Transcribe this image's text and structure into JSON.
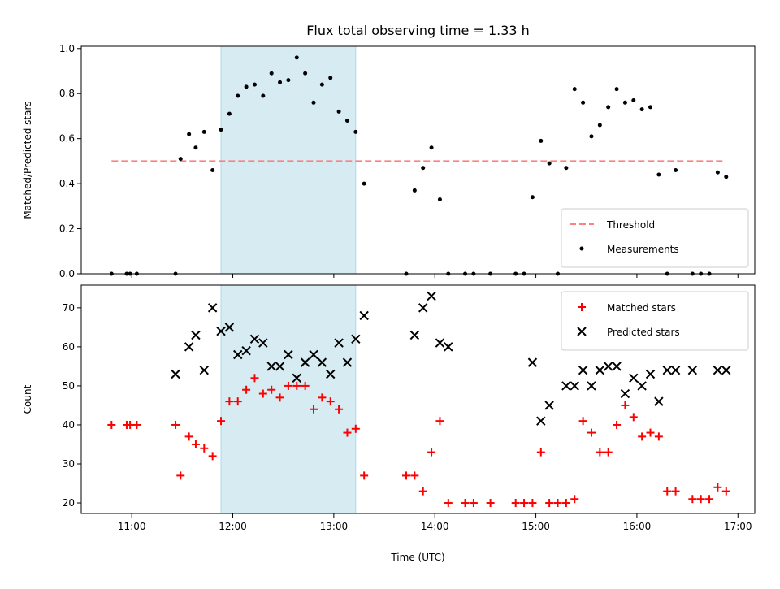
{
  "chart_data": [
    {
      "type": "scatter",
      "title": "Flux total observing time = 1.33 h",
      "xlabel": "",
      "ylabel": "Matched/Predicted stars",
      "xlim": [
        "10:30",
        "17:10"
      ],
      "ylim": [
        0,
        1.01
      ],
      "yticks": [
        "0.0",
        "0.2",
        "0.4",
        "0.6",
        "0.8",
        "1.0"
      ],
      "ytick_values": [
        0,
        0.2,
        0.4,
        0.6,
        0.8,
        1.0
      ],
      "xticks": [
        "11:00",
        "12:00",
        "13:00",
        "14:00",
        "15:00",
        "16:00",
        "17:00"
      ],
      "shaded_span": [
        "11:53",
        "13:13"
      ],
      "shaded_color": "#add8e6",
      "legend_position": "lower right",
      "threshold": {
        "name": "Threshold",
        "y": 0.5,
        "x": [
          "10:48",
          "16:53"
        ],
        "color": "#ff8080",
        "style": "dashed"
      },
      "series": [
        {
          "name": "Measurements",
          "marker": "dot",
          "color": "#000000",
          "x": [
            "10:48",
            "10:57",
            "10:59",
            "11:03",
            "11:26",
            "11:29",
            "11:34",
            "11:38",
            "11:43",
            "11:48",
            "11:53",
            "11:58",
            "12:03",
            "12:08",
            "12:13",
            "12:18",
            "12:23",
            "12:28",
            "12:33",
            "12:38",
            "12:43",
            "12:48",
            "12:53",
            "12:58",
            "13:03",
            "13:08",
            "13:13",
            "13:18",
            "13:43",
            "13:48",
            "13:53",
            "13:58",
            "14:03",
            "14:08",
            "14:18",
            "14:23",
            "14:33",
            "14:48",
            "14:53",
            "14:58",
            "15:03",
            "15:08",
            "15:13",
            "15:18",
            "15:23",
            "15:28",
            "15:33",
            "15:38",
            "15:43",
            "15:48",
            "15:53",
            "15:58",
            "16:03",
            "16:08",
            "16:13",
            "16:18",
            "16:23",
            "16:33",
            "16:38",
            "16:43",
            "16:48",
            "16:53"
          ],
          "values": [
            0,
            0,
            0,
            0,
            0,
            0.51,
            0.62,
            0.56,
            0.63,
            0.46,
            0.64,
            0.71,
            0.79,
            0.83,
            0.84,
            0.79,
            0.89,
            0.85,
            0.86,
            0.96,
            0.89,
            0.76,
            0.84,
            0.87,
            0.72,
            0.68,
            0.63,
            0.4,
            0,
            0.37,
            0.47,
            0.56,
            0.33,
            0,
            0,
            0,
            0,
            0,
            0,
            0.34,
            0.59,
            0.49,
            0,
            0.47,
            0.82,
            0.76,
            0.61,
            0.66,
            0.74,
            0.82,
            0.76,
            0.77,
            0.73,
            0.74,
            0.44,
            0,
            0.46,
            0,
            0,
            0,
            0.45,
            0.43
          ]
        }
      ]
    },
    {
      "type": "scatter",
      "title": "",
      "xlabel": "Time (UTC)",
      "ylabel": "Count",
      "xlim": [
        "10:30",
        "17:10"
      ],
      "ylim": [
        17.3,
        75.8
      ],
      "yticks": [
        "20",
        "30",
        "40",
        "50",
        "60",
        "70"
      ],
      "ytick_values": [
        20,
        30,
        40,
        50,
        60,
        70
      ],
      "xticks": [
        "11:00",
        "12:00",
        "13:00",
        "14:00",
        "15:00",
        "16:00",
        "17:00"
      ],
      "shaded_span": [
        "11:53",
        "13:13"
      ],
      "shaded_color": "#add8e6",
      "legend_position": "upper right",
      "series": [
        {
          "name": "Matched stars",
          "marker": "plus",
          "color": "#ff0000",
          "x": [
            "10:48",
            "10:57",
            "10:59",
            "11:03",
            "11:26",
            "11:29",
            "11:34",
            "11:38",
            "11:43",
            "11:48",
            "11:53",
            "11:58",
            "12:03",
            "12:08",
            "12:13",
            "12:18",
            "12:23",
            "12:28",
            "12:33",
            "12:38",
            "12:43",
            "12:48",
            "12:53",
            "12:58",
            "13:03",
            "13:08",
            "13:13",
            "13:18",
            "13:43",
            "13:48",
            "13:53",
            "13:58",
            "14:03",
            "14:08",
            "14:18",
            "14:23",
            "14:33",
            "14:48",
            "14:53",
            "14:58",
            "15:03",
            "15:08",
            "15:13",
            "15:18",
            "15:23",
            "15:28",
            "15:33",
            "15:38",
            "15:43",
            "15:48",
            "15:53",
            "15:58",
            "16:03",
            "16:08",
            "16:13",
            "16:18",
            "16:23",
            "16:33",
            "16:38",
            "16:43",
            "16:48",
            "16:53"
          ],
          "values": [
            40,
            40,
            40,
            40,
            40,
            27,
            37,
            35,
            34,
            32,
            41,
            46,
            46,
            49,
            52,
            48,
            49,
            47,
            50,
            50,
            50,
            44,
            47,
            46,
            44,
            38,
            39,
            27,
            27,
            27,
            23,
            33,
            41,
            20,
            20,
            20,
            20,
            20,
            20,
            20,
            33,
            20,
            20,
            20,
            21,
            41,
            38,
            33,
            33,
            40,
            45,
            42,
            37,
            38,
            37,
            23,
            23,
            21,
            21,
            21,
            24,
            23
          ]
        },
        {
          "name": "Predicted stars",
          "marker": "x",
          "color": "#000000",
          "x": [
            "11:26",
            "11:34",
            "11:38",
            "11:43",
            "11:48",
            "11:53",
            "11:58",
            "12:03",
            "12:08",
            "12:13",
            "12:18",
            "12:23",
            "12:28",
            "12:33",
            "12:38",
            "12:43",
            "12:48",
            "12:53",
            "12:58",
            "13:03",
            "13:08",
            "13:13",
            "13:18",
            "13:48",
            "13:53",
            "13:58",
            "14:03",
            "14:08",
            "14:58",
            "15:03",
            "15:08",
            "15:18",
            "15:23",
            "15:28",
            "15:33",
            "15:38",
            "15:43",
            "15:48",
            "15:53",
            "15:58",
            "16:03",
            "16:08",
            "16:13",
            "16:18",
            "16:23",
            "16:33",
            "16:48",
            "16:53"
          ],
          "values": [
            53,
            60,
            63,
            54,
            70,
            64,
            65,
            58,
            59,
            62,
            61,
            55,
            55,
            58,
            52,
            56,
            58,
            56,
            53,
            61,
            56,
            62,
            68,
            63,
            70,
            73,
            61,
            60,
            56,
            41,
            45,
            50,
            50,
            54,
            50,
            54,
            55,
            55,
            48,
            52,
            50,
            53,
            46,
            54,
            54,
            54,
            54,
            54
          ]
        }
      ]
    }
  ]
}
